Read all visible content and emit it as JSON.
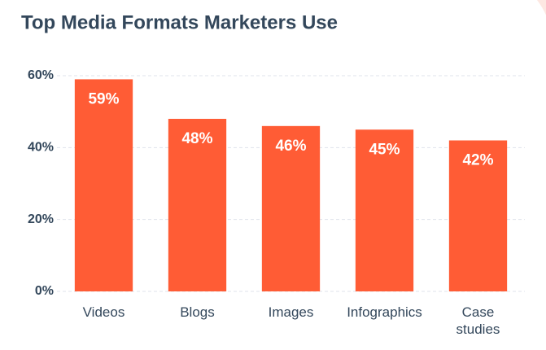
{
  "chart_data": {
    "type": "bar",
    "title": "Top Media Formats Marketers Use",
    "categories": [
      "Videos",
      "Blogs",
      "Images",
      "Infographics",
      "Case studies"
    ],
    "values": [
      59,
      48,
      46,
      45,
      42
    ],
    "value_labels": [
      "59%",
      "48%",
      "46%",
      "45%",
      "42%"
    ],
    "color": "#ff5c35",
    "ylim": [
      0,
      60
    ],
    "yticks": [
      {
        "value": 0,
        "label": "0%"
      },
      {
        "value": 20,
        "label": "20%"
      },
      {
        "value": 40,
        "label": "40%"
      },
      {
        "value": 60,
        "label": "60%"
      }
    ],
    "grid": true
  }
}
